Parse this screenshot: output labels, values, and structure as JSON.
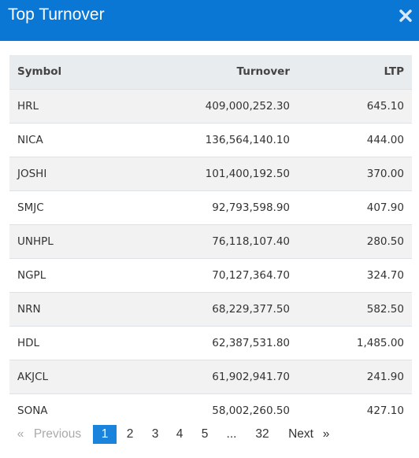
{
  "header": {
    "title": "Top Turnover"
  },
  "table": {
    "columns": [
      "Symbol",
      "Turnover",
      "LTP"
    ],
    "rows": [
      [
        "HRL",
        "409,000,252.30",
        "645.10"
      ],
      [
        "NICA",
        "136,564,140.10",
        "444.00"
      ],
      [
        "JOSHI",
        "101,400,192.50",
        "370.00"
      ],
      [
        "SMJC",
        "92,793,598.90",
        "407.90"
      ],
      [
        "UNHPL",
        "76,118,107.40",
        "280.50"
      ],
      [
        "NGPL",
        "70,127,364.70",
        "324.70"
      ],
      [
        "NRN",
        "68,229,377.50",
        "582.50"
      ],
      [
        "HDL",
        "62,387,531.80",
        "1,485.00"
      ],
      [
        "AKJCL",
        "61,902,941.70",
        "241.90"
      ],
      [
        "SONA",
        "58,002,260.50",
        "427.10"
      ]
    ]
  },
  "pagination": {
    "first": "«",
    "previous": "Previous",
    "pages": [
      "1",
      "2",
      "3",
      "4",
      "5",
      "...",
      "32"
    ],
    "next": "Next",
    "last": "»"
  }
}
